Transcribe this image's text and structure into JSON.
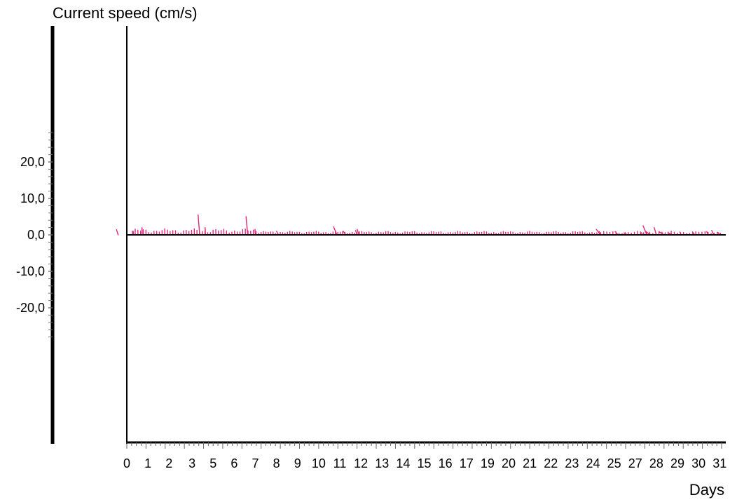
{
  "chart_data": {
    "type": "stick_vector",
    "ylabel": "Current speed (cm/s)",
    "xlabel": "Days",
    "ylim": [
      -20,
      20
    ],
    "ytick_values": [
      20,
      10,
      0,
      -10,
      -20
    ],
    "ytick_labels": [
      "20,0",
      "10,0",
      "0,0",
      "-10,0",
      "-20,0"
    ],
    "xlim": [
      0,
      31
    ],
    "xtick_values": [
      0,
      1,
      2,
      3,
      4,
      5,
      6,
      7,
      8,
      9,
      10,
      11,
      12,
      13,
      14,
      15,
      16,
      17,
      18,
      19,
      20,
      21,
      22,
      23,
      24,
      25,
      26,
      27,
      28,
      29,
      30,
      31
    ],
    "xtick_labels": [
      "0",
      "1",
      "2",
      "3",
      "5",
      "6",
      "7",
      "8",
      "9",
      "10",
      "11",
      "12",
      "13",
      "14",
      "15",
      "16",
      "17",
      "19",
      "20",
      "21",
      "22",
      "23",
      "24",
      "25",
      "27",
      "28",
      "29",
      "30",
      "31"
    ],
    "xtick_label_positions": [
      0.0,
      1.1,
      2.2,
      3.4,
      4.5,
      5.6,
      6.7,
      7.8,
      8.9,
      10.0,
      11.1,
      12.2,
      13.3,
      14.4,
      15.5,
      16.6,
      17.7,
      18.8,
      19.9,
      21.0,
      22.1,
      23.2,
      24.3,
      25.4,
      26.5,
      27.6,
      28.7,
      29.8,
      30.9
    ],
    "grid": false,
    "legend": "none",
    "vector_color": "#e0267d",
    "vectors": [
      {
        "t": -0.45,
        "u": 0.45,
        "v": 1.4
      },
      {
        "t": 0.35,
        "u": 0.1,
        "v": 1.0
      },
      {
        "t": 0.8,
        "u": 0.05,
        "v": 2.0
      },
      {
        "t": 3.8,
        "u": 0.45,
        "v": 5.5
      },
      {
        "t": 4.1,
        "u": 0.1,
        "v": 2.0
      },
      {
        "t": 6.3,
        "u": 0.45,
        "v": 5.0
      },
      {
        "t": 6.7,
        "u": 0.1,
        "v": 1.5
      },
      {
        "t": 7.9,
        "u": 0.5,
        "v": 1.0
      },
      {
        "t": 10.95,
        "u": 0.9,
        "v": 2.2
      },
      {
        "t": 11.4,
        "u": 0.6,
        "v": 1.0
      },
      {
        "t": 12.0,
        "u": 0.4,
        "v": 1.2
      },
      {
        "t": 12.1,
        "u": 0.5,
        "v": 1.5
      },
      {
        "t": 24.7,
        "u": 1.2,
        "v": 1.5
      },
      {
        "t": 25.6,
        "u": 0.8,
        "v": 0.9
      },
      {
        "t": 26.1,
        "u": 1.0,
        "v": 0.5
      },
      {
        "t": 26.9,
        "u": 0.6,
        "v": 0.7
      },
      {
        "t": 27.1,
        "u": 1.0,
        "v": 2.5
      },
      {
        "t": 27.3,
        "u": 1.3,
        "v": 0.9
      },
      {
        "t": 27.6,
        "u": 0.6,
        "v": 2.0
      },
      {
        "t": 28.0,
        "u": 1.4,
        "v": 0.9
      },
      {
        "t": 28.4,
        "u": 1.0,
        "v": 0.6
      },
      {
        "t": 28.9,
        "u": 0.4,
        "v": 0.8
      },
      {
        "t": 29.6,
        "u": 0.6,
        "v": 0.8
      },
      {
        "t": 30.3,
        "u": 0.4,
        "v": 0.9
      },
      {
        "t": 30.6,
        "u": 0.6,
        "v": 1.2
      },
      {
        "t": 30.9,
        "u": 0.5,
        "v": 0.7
      }
    ],
    "small_stick_segments": [
      {
        "t_start": 0.3,
        "t_end": 6.9,
        "step": 0.14,
        "u": 0.02,
        "v_min": 0.4,
        "v_max": 1.7
      },
      {
        "t_start": 7.0,
        "t_end": 24.7,
        "step": 0.125,
        "u": 0.02,
        "v_min": 0.3,
        "v_max": 1.0
      },
      {
        "t_start": 24.7,
        "t_end": 31.0,
        "step": 0.16,
        "u": 0.03,
        "v_min": 0.3,
        "v_max": 1.0
      }
    ]
  }
}
